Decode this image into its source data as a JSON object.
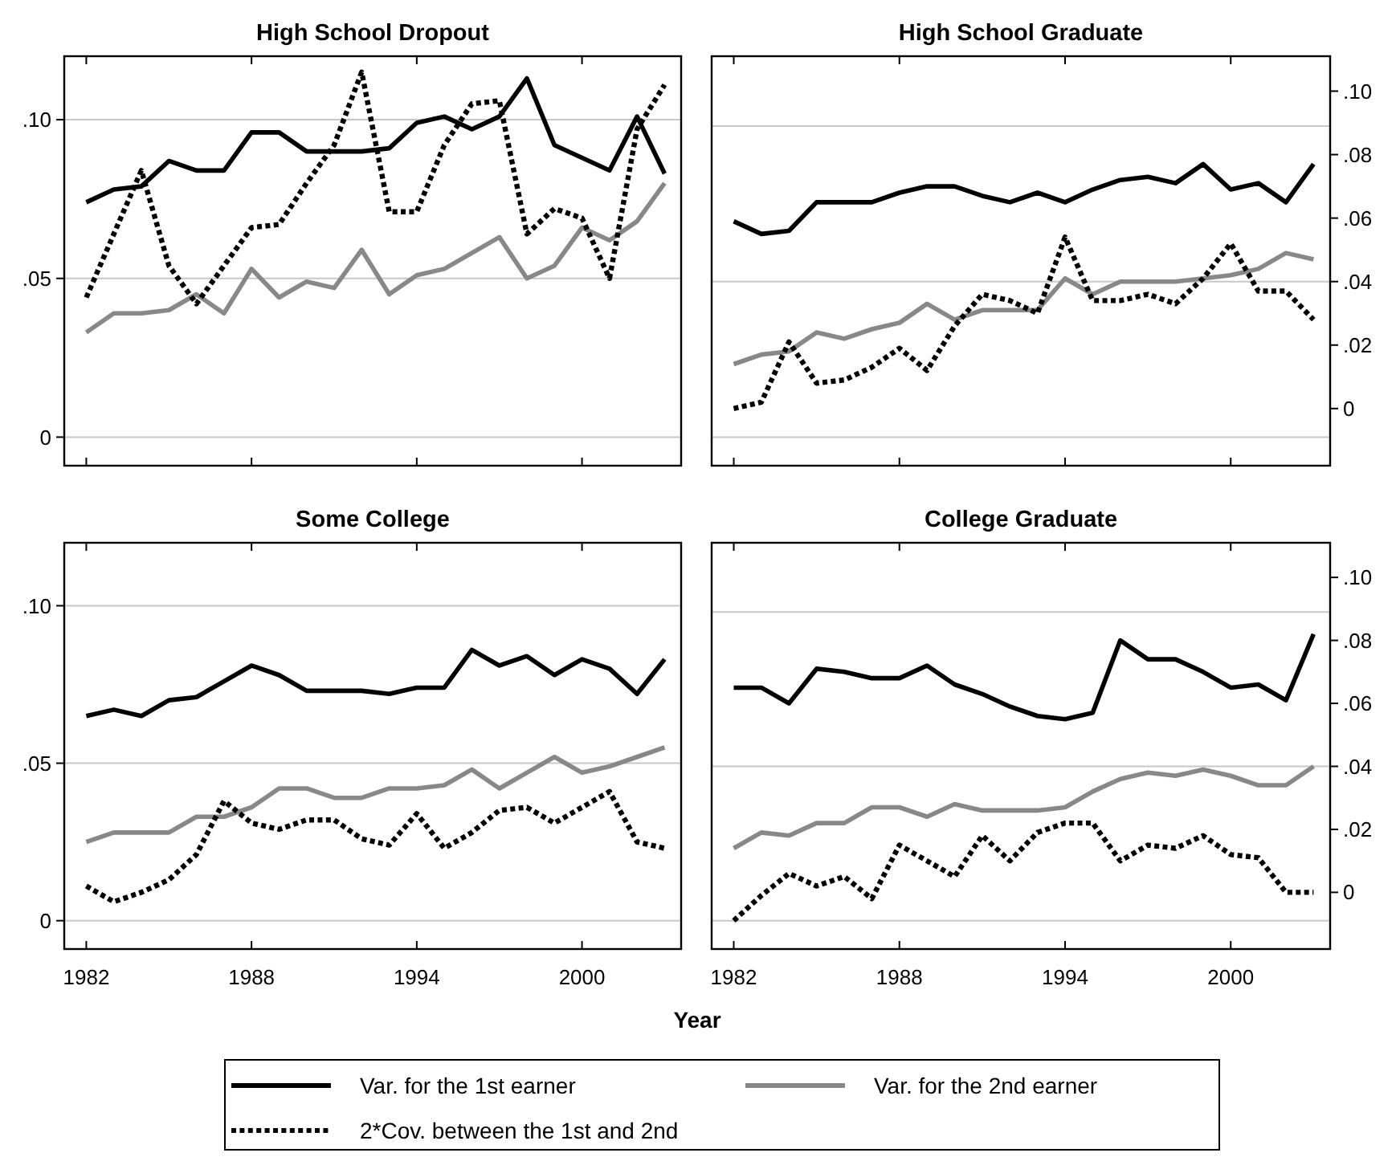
{
  "chart_data": [
    {
      "type": "line",
      "title": "High School Dropout",
      "x": [
        1982,
        1983,
        1984,
        1985,
        1986,
        1987,
        1988,
        1989,
        1990,
        1991,
        1992,
        1993,
        1994,
        1995,
        1996,
        1997,
        1998,
        1999,
        2000,
        2001,
        2002,
        2003
      ],
      "xlim": [
        1981.2,
        2003.6
      ],
      "xticks": [
        1982,
        1988,
        1994,
        2000
      ],
      "ylim": [
        -0.009,
        0.12
      ],
      "yticks": [
        {
          "value": 0,
          "label": "0"
        },
        {
          "value": 0.05,
          "label": ".05"
        },
        {
          "value": 0.1,
          "label": ".10"
        }
      ],
      "grid": "y",
      "tick_labels": "y",
      "legend": "bottom",
      "series": [
        {
          "name": "Var. for the 1st earner",
          "color": "#000000",
          "line_style": "solid",
          "values": [
            0.074,
            0.078,
            0.079,
            0.087,
            0.084,
            0.084,
            0.096,
            0.096,
            0.09,
            0.09,
            0.09,
            0.091,
            0.099,
            0.101,
            0.097,
            0.101,
            0.113,
            0.092,
            0.088,
            0.084,
            0.101,
            0.083
          ]
        },
        {
          "name": "Var. for the 2nd earner",
          "color": "#888888",
          "line_style": "solid",
          "values": [
            0.033,
            0.039,
            0.039,
            0.04,
            0.045,
            0.039,
            0.053,
            0.044,
            0.049,
            0.047,
            0.059,
            0.045,
            0.051,
            0.053,
            0.058,
            0.063,
            0.05,
            0.054,
            0.066,
            0.062,
            0.068,
            0.08
          ]
        },
        {
          "name": "2*Cov. between the 1st and 2nd",
          "color": "#000000",
          "line_style": "dotted",
          "values": [
            0.044,
            0.064,
            0.084,
            0.054,
            0.042,
            0.054,
            0.066,
            0.067,
            0.08,
            0.092,
            0.115,
            0.071,
            0.071,
            0.092,
            0.105,
            0.106,
            0.064,
            0.072,
            0.069,
            0.05,
            0.097,
            0.111
          ]
        }
      ]
    },
    {
      "type": "line",
      "title": "High School Graduate",
      "x": [
        1982,
        1983,
        1984,
        1985,
        1986,
        1987,
        1988,
        1989,
        1990,
        1991,
        1992,
        1993,
        1994,
        1995,
        1996,
        1997,
        1998,
        1999,
        2000,
        2001,
        2002,
        2003
      ],
      "xlim": [
        1981.2,
        2003.6
      ],
      "xticks": [
        1982,
        1988,
        1994,
        2000
      ],
      "ylim": [
        -0.018,
        0.111
      ],
      "yticks": [
        0,
        {
          "value": 0.02,
          "label": ".02"
        },
        {
          "value": 0.04,
          "label": ".04"
        },
        {
          "value": 0.06,
          "label": ".06"
        },
        {
          "value": 0.08,
          "label": ".08"
        },
        {
          "value": 0.1,
          "label": ".10"
        }
      ],
      "grid": false,
      "tick_labels": "y",
      "legend": false,
      "ref_lines": [
        {
          "axis": "y",
          "value": -0.009,
          "color": "#c8c8c8"
        },
        {
          "axis": "y",
          "value": 0.04,
          "color": "#c8c8c8"
        },
        {
          "axis": "y",
          "value": 0.089,
          "color": "#c8c8c8"
        }
      ],
      "series": [
        {
          "color": "#000000",
          "line_style": "solid",
          "values": [
            0.059,
            0.055,
            0.056,
            0.065,
            0.065,
            0.065,
            0.068,
            0.07,
            0.07,
            0.067,
            0.065,
            0.068,
            0.065,
            0.069,
            0.072,
            0.073,
            0.071,
            0.077,
            0.069,
            0.071,
            0.065,
            0.077
          ]
        },
        {
          "color": "#888888",
          "line_style": "solid",
          "values": [
            0.014,
            0.017,
            0.018,
            0.024,
            0.022,
            0.025,
            0.027,
            0.033,
            0.028,
            0.031,
            0.031,
            0.031,
            0.041,
            0.036,
            0.04,
            0.04,
            0.04,
            0.041,
            0.042,
            0.044,
            0.049,
            0.047
          ]
        },
        {
          "color": "#000000",
          "line_style": "dotted",
          "values": [
            0.0,
            0.002,
            0.021,
            0.008,
            0.009,
            0.013,
            0.019,
            0.012,
            0.026,
            0.036,
            0.034,
            0.03,
            0.054,
            0.034,
            0.034,
            0.036,
            0.033,
            0.041,
            0.052,
            0.037,
            0.037,
            0.028
          ]
        }
      ]
    },
    {
      "type": "line",
      "title": "Some College",
      "x": [
        1982,
        1983,
        1984,
        1985,
        1986,
        1987,
        1988,
        1989,
        1990,
        1991,
        1992,
        1993,
        1994,
        1995,
        1996,
        1997,
        1998,
        1999,
        2000,
        2001,
        2002,
        2003
      ],
      "xlim": [
        1981.2,
        2003.6
      ],
      "xticks": [
        1982,
        1988,
        1994,
        2000
      ],
      "ylim": [
        -0.009,
        0.12
      ],
      "yticks": [
        {
          "value": 0,
          "label": "0"
        },
        {
          "value": 0.05,
          "label": ".05"
        },
        {
          "value": 0.1,
          "label": ".10"
        }
      ],
      "grid": "y",
      "legend": false,
      "xlabel": "Year",
      "series": [
        {
          "color": "#000000",
          "line_style": "solid",
          "values": [
            0.065,
            0.067,
            0.065,
            0.07,
            0.071,
            0.076,
            0.081,
            0.078,
            0.073,
            0.073,
            0.073,
            0.072,
            0.074,
            0.074,
            0.086,
            0.081,
            0.084,
            0.078,
            0.083,
            0.08,
            0.072,
            0.083
          ]
        },
        {
          "color": "#888888",
          "line_style": "solid",
          "values": [
            0.025,
            0.028,
            0.028,
            0.028,
            0.033,
            0.033,
            0.036,
            0.042,
            0.042,
            0.039,
            0.039,
            0.042,
            0.042,
            0.043,
            0.048,
            0.042,
            0.047,
            0.052,
            0.047,
            0.049,
            0.052,
            0.055
          ]
        },
        {
          "color": "#000000",
          "line_style": "dotted",
          "values": [
            0.011,
            0.006,
            0.009,
            0.013,
            0.021,
            0.038,
            0.031,
            0.029,
            0.032,
            0.032,
            0.026,
            0.024,
            0.034,
            0.023,
            0.028,
            0.035,
            0.036,
            0.031,
            0.036,
            0.041,
            0.025,
            0.023
          ]
        }
      ]
    },
    {
      "type": "line",
      "title": "College Graduate",
      "x": [
        1982,
        1983,
        1984,
        1985,
        1986,
        1987,
        1988,
        1989,
        1990,
        1991,
        1992,
        1993,
        1994,
        1995,
        1996,
        1997,
        1998,
        1999,
        2000,
        2001,
        2002,
        2003
      ],
      "xlim": [
        1981.2,
        2003.6
      ],
      "xticks": [
        1982,
        1988,
        1994,
        2000
      ],
      "ylim": [
        -0.018,
        0.111
      ],
      "yticks": [
        0,
        {
          "value": 0.02,
          "label": ".02"
        },
        {
          "value": 0.04,
          "label": ".04"
        },
        {
          "value": 0.06,
          "label": ".06"
        },
        {
          "value": 0.08,
          "label": ".08"
        },
        {
          "value": 0.1,
          "label": ".10"
        }
      ],
      "grid": false,
      "legend": false,
      "ref_lines": [
        {
          "axis": "y",
          "value": -0.009,
          "color": "#c8c8c8"
        },
        {
          "axis": "y",
          "value": 0.04,
          "color": "#c8c8c8"
        },
        {
          "axis": "y",
          "value": 0.089,
          "color": "#c8c8c8"
        }
      ],
      "series": [
        {
          "color": "#000000",
          "line_style": "solid",
          "values": [
            0.065,
            0.065,
            0.06,
            0.071,
            0.07,
            0.068,
            0.068,
            0.072,
            0.066,
            0.063,
            0.059,
            0.056,
            0.055,
            0.057,
            0.08,
            0.074,
            0.074,
            0.07,
            0.065,
            0.066,
            0.061,
            0.082
          ]
        },
        {
          "color": "#888888",
          "line_style": "solid",
          "values": [
            0.014,
            0.019,
            0.018,
            0.022,
            0.022,
            0.027,
            0.027,
            0.024,
            0.028,
            0.026,
            0.026,
            0.026,
            0.027,
            0.032,
            0.036,
            0.038,
            0.037,
            0.039,
            0.037,
            0.034,
            0.034,
            0.04
          ]
        },
        {
          "color": "#000000",
          "line_style": "dotted",
          "values": [
            -0.009,
            -0.001,
            0.006,
            0.002,
            0.005,
            -0.002,
            0.015,
            0.01,
            0.005,
            0.018,
            0.01,
            0.019,
            0.022,
            0.022,
            0.01,
            0.015,
            0.014,
            0.018,
            0.012,
            0.011,
            0.0,
            0.0
          ]
        }
      ]
    }
  ]
}
